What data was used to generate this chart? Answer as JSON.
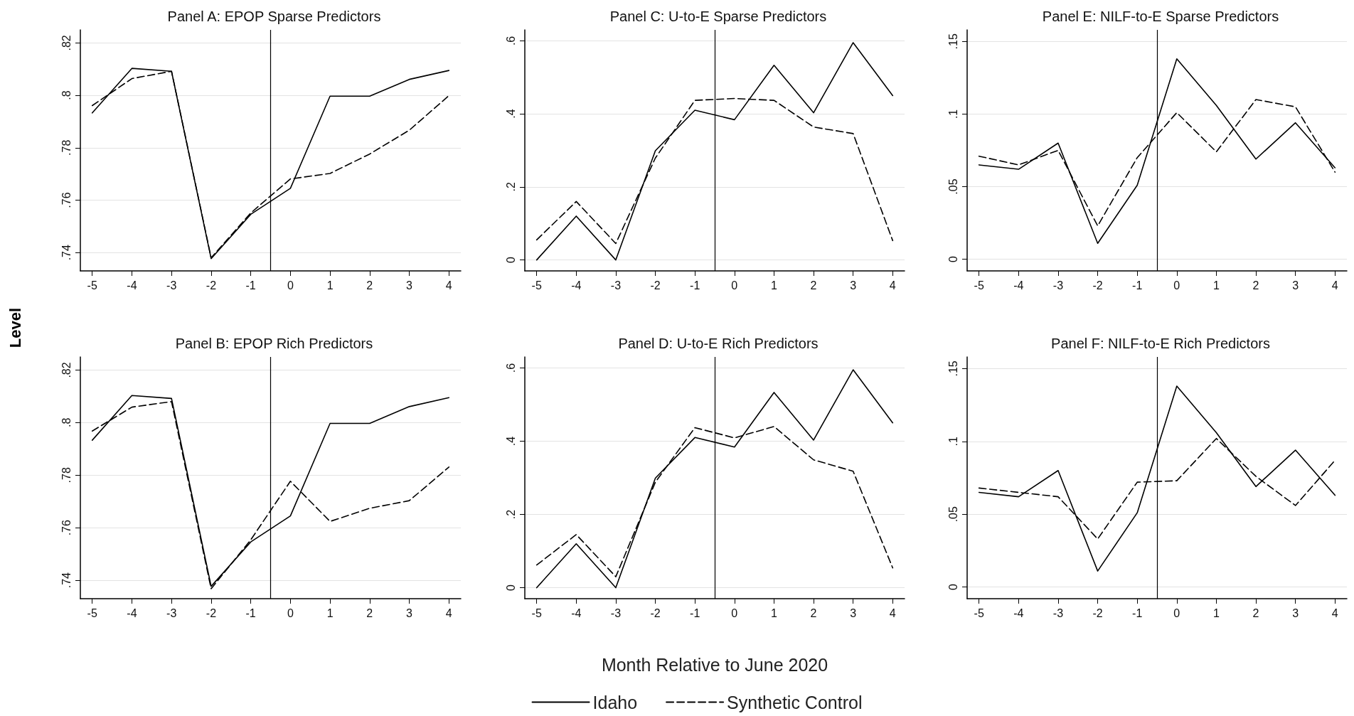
{
  "chart_data": [
    {
      "type": "line",
      "title": "Panel A: EPOP Sparse Predictors",
      "ylabel": "Level",
      "x": [
        -5,
        -4,
        -3,
        -2,
        -1,
        0,
        1,
        2,
        3,
        4
      ],
      "xlim": [
        -5.3,
        4.3
      ],
      "xticks": [
        -5,
        -4,
        -3,
        -2,
        -1,
        0,
        1,
        2,
        3,
        4
      ],
      "ylim": [
        0.733,
        0.825
      ],
      "yticks": [
        {
          "value": 0.74,
          "label": ".74"
        },
        {
          "value": 0.76,
          "label": ".76"
        },
        {
          "value": 0.78,
          "label": ".78"
        },
        {
          "value": 0.8,
          "label": ".8"
        },
        {
          "value": 0.82,
          "label": ".82"
        }
      ],
      "grid": "y",
      "marker": "none",
      "legend": false,
      "ref_lines": [
        {
          "axis": "x",
          "value": -0.5,
          "color": "#000000"
        }
      ],
      "series": [
        {
          "color": "#000000",
          "line_style": "solid",
          "values": [
            0.7933,
            0.8103,
            0.8092,
            0.7377,
            0.7546,
            0.7645,
            0.7997,
            0.7997,
            0.8061,
            0.8095
          ]
        },
        {
          "color": "#000000",
          "line_style": "dashed",
          "values": [
            0.7961,
            0.8064,
            0.8092,
            0.738,
            0.7551,
            0.7681,
            0.7702,
            0.7776,
            0.7867,
            0.7999
          ]
        }
      ]
    },
    {
      "type": "line",
      "title": "Panel C: U-to-E Sparse Predictors",
      "x": [
        -5,
        -4,
        -3,
        -2,
        -1,
        0,
        1,
        2,
        3,
        4
      ],
      "xlim": [
        -5.3,
        4.3
      ],
      "xticks": [
        -5,
        -4,
        -3,
        -2,
        -1,
        0,
        1,
        2,
        3,
        4
      ],
      "ylim": [
        -0.03,
        0.63
      ],
      "yticks": [
        {
          "value": 0,
          "label": "0"
        },
        {
          "value": 0.2,
          "label": ".2"
        },
        {
          "value": 0.4,
          "label": ".4"
        },
        {
          "value": 0.6,
          "label": ".6"
        }
      ],
      "grid": "y",
      "marker": "none",
      "legend": false,
      "ref_lines": [
        {
          "axis": "x",
          "value": -0.5,
          "color": "#000000"
        }
      ],
      "series": [
        {
          "color": "#000000",
          "line_style": "solid",
          "values": [
            0,
            0.12,
            0,
            0.299,
            0.41,
            0.384,
            0.533,
            0.403,
            0.595,
            0.45
          ]
        },
        {
          "color": "#000000",
          "line_style": "dashed",
          "values": [
            0.055,
            0.16,
            0.045,
            0.279,
            0.437,
            0.442,
            0.437,
            0.364,
            0.346,
            0.053
          ]
        }
      ]
    },
    {
      "type": "line",
      "title": "Panel E: NILF-to-E Sparse Predictors",
      "x": [
        -5,
        -4,
        -3,
        -2,
        -1,
        0,
        1,
        2,
        3,
        4
      ],
      "xlim": [
        -5.3,
        4.3
      ],
      "xticks": [
        -5,
        -4,
        -3,
        -2,
        -1,
        0,
        1,
        2,
        3,
        4
      ],
      "ylim": [
        -0.008,
        0.158
      ],
      "yticks": [
        {
          "value": 0,
          "label": "0"
        },
        {
          "value": 0.05,
          "label": ".05"
        },
        {
          "value": 0.1,
          "label": ".1"
        },
        {
          "value": 0.15,
          "label": ".15"
        }
      ],
      "grid": "y",
      "marker": "none",
      "legend": false,
      "ref_lines": [
        {
          "axis": "x",
          "value": -0.5,
          "color": "#000000"
        }
      ],
      "series": [
        {
          "color": "#000000",
          "line_style": "solid",
          "values": [
            0.065,
            0.062,
            0.08,
            0.011,
            0.051,
            0.138,
            0.106,
            0.069,
            0.094,
            0.063
          ]
        },
        {
          "color": "#000000",
          "line_style": "dashed",
          "values": [
            0.071,
            0.065,
            0.075,
            0.023,
            0.07,
            0.101,
            0.074,
            0.11,
            0.105,
            0.06
          ]
        }
      ]
    },
    {
      "type": "line",
      "title": "Panel B: EPOP Rich Predictors",
      "x": [
        -5,
        -4,
        -3,
        -2,
        -1,
        0,
        1,
        2,
        3,
        4
      ],
      "xlim": [
        -5.3,
        4.3
      ],
      "xticks": [
        -5,
        -4,
        -3,
        -2,
        -1,
        0,
        1,
        2,
        3,
        4
      ],
      "ylim": [
        0.733,
        0.825
      ],
      "yticks": [
        {
          "value": 0.74,
          "label": ".74"
        },
        {
          "value": 0.76,
          "label": ".76"
        },
        {
          "value": 0.78,
          "label": ".78"
        },
        {
          "value": 0.8,
          "label": ".8"
        },
        {
          "value": 0.82,
          "label": ".82"
        }
      ],
      "grid": "y",
      "marker": "none",
      "legend": false,
      "ref_lines": [
        {
          "axis": "x",
          "value": -0.5,
          "color": "#000000"
        }
      ],
      "series": [
        {
          "color": "#000000",
          "line_style": "solid",
          "values": [
            0.7933,
            0.8103,
            0.8092,
            0.7377,
            0.7546,
            0.7645,
            0.7997,
            0.7997,
            0.8061,
            0.8095
          ]
        },
        {
          "color": "#000000",
          "line_style": "dashed",
          "values": [
            0.7968,
            0.8059,
            0.808,
            0.7368,
            0.7554,
            0.7777,
            0.7624,
            0.7674,
            0.7703,
            0.7831
          ]
        }
      ]
    },
    {
      "type": "line",
      "title": "Panel D: U-to-E Rich Predictors",
      "xlabel": "Month Relative to June 2020",
      "x": [
        -5,
        -4,
        -3,
        -2,
        -1,
        0,
        1,
        2,
        3,
        4
      ],
      "xlim": [
        -5.3,
        4.3
      ],
      "xticks": [
        -5,
        -4,
        -3,
        -2,
        -1,
        0,
        1,
        2,
        3,
        4
      ],
      "ylim": [
        -0.03,
        0.63
      ],
      "yticks": [
        {
          "value": 0,
          "label": "0"
        },
        {
          "value": 0.2,
          "label": ".2"
        },
        {
          "value": 0.4,
          "label": ".4"
        },
        {
          "value": 0.6,
          "label": ".6"
        }
      ],
      "grid": "y",
      "marker": "none",
      "legend": "bottom",
      "ref_lines": [
        {
          "axis": "x",
          "value": -0.5,
          "color": "#000000"
        }
      ],
      "series": [
        {
          "name": "Idaho",
          "color": "#000000",
          "line_style": "solid",
          "values": [
            0,
            0.12,
            0,
            0.299,
            0.41,
            0.384,
            0.533,
            0.403,
            0.595,
            0.45
          ]
        },
        {
          "name": "Synthetic Control",
          "color": "#000000",
          "line_style": "dashed",
          "values": [
            0.062,
            0.145,
            0.03,
            0.288,
            0.437,
            0.409,
            0.44,
            0.349,
            0.318,
            0.054
          ]
        }
      ]
    },
    {
      "type": "line",
      "title": "Panel F: NILF-to-E Rich Predictors",
      "x": [
        -5,
        -4,
        -3,
        -2,
        -1,
        0,
        1,
        2,
        3,
        4
      ],
      "xlim": [
        -5.3,
        4.3
      ],
      "xticks": [
        -5,
        -4,
        -3,
        -2,
        -1,
        0,
        1,
        2,
        3,
        4
      ],
      "ylim": [
        -0.008,
        0.158
      ],
      "yticks": [
        {
          "value": 0,
          "label": "0"
        },
        {
          "value": 0.05,
          "label": ".05"
        },
        {
          "value": 0.1,
          "label": ".1"
        },
        {
          "value": 0.15,
          "label": ".15"
        }
      ],
      "grid": "y",
      "marker": "none",
      "legend": false,
      "ref_lines": [
        {
          "axis": "x",
          "value": -0.5,
          "color": "#000000"
        }
      ],
      "series": [
        {
          "color": "#000000",
          "line_style": "solid",
          "values": [
            0.065,
            0.062,
            0.08,
            0.011,
            0.051,
            0.138,
            0.106,
            0.069,
            0.094,
            0.063
          ]
        },
        {
          "color": "#000000",
          "line_style": "dashed",
          "values": [
            0.068,
            0.065,
            0.062,
            0.033,
            0.072,
            0.073,
            0.102,
            0.076,
            0.056,
            0.087
          ]
        }
      ]
    }
  ]
}
